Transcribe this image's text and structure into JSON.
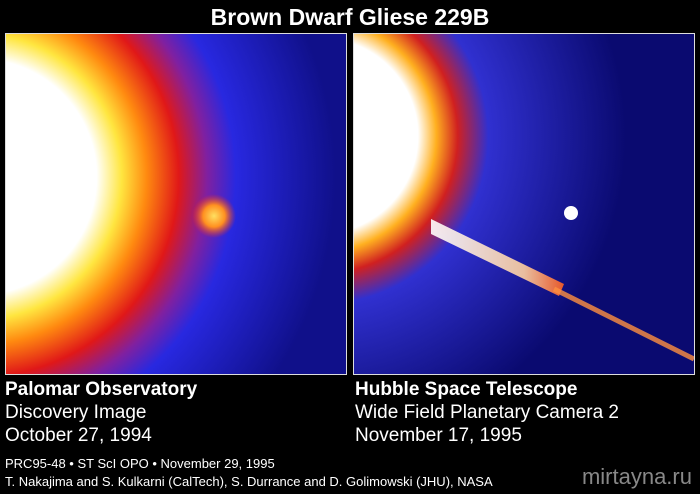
{
  "title": "Brown Dwarf Gliese 229B",
  "panels": [
    {
      "heading": "Palomar Observatory",
      "lines": [
        "Discovery Image",
        "October 27, 1994"
      ]
    },
    {
      "heading": "Hubble Space Telescope",
      "lines": [
        "Wide Field Planetary Camera 2",
        "November 17, 1995"
      ]
    }
  ],
  "credits": [
    "PRC95-48 • ST ScI OPO • November 29, 1995",
    "T. Nakajima and S. Kulkarni (CalTech), S. Durrance and D. Golimowski (JHU), NASA"
  ],
  "watermark": "mirtayna.ru"
}
